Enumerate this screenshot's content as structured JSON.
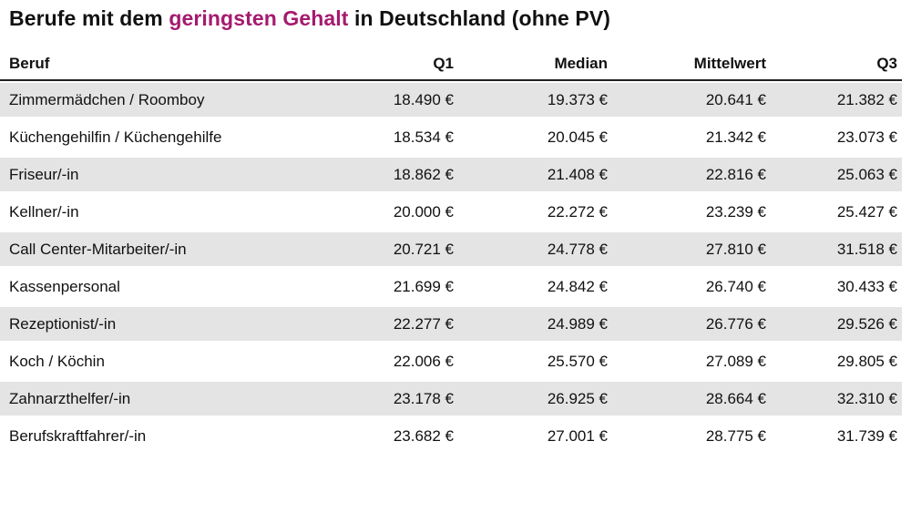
{
  "title": {
    "prefix": "Berufe mit dem ",
    "highlight": "geringsten Gehalt",
    "suffix": " in Deutschland (ohne PV)"
  },
  "colors": {
    "highlight_text": "#a51a6e",
    "zebra_row": "#e4e4e4",
    "header_rule": "#222222",
    "text": "#111111",
    "background": "#ffffff"
  },
  "chart_data": {
    "type": "table",
    "title": "Berufe mit dem geringsten Gehalt in Deutschland (ohne PV)",
    "columns": [
      "Beruf",
      "Q1",
      "Median",
      "Mittelwert",
      "Q3"
    ],
    "rows": [
      [
        "Zimmermädchen / Roomboy",
        "18.490 €",
        "19.373 €",
        "20.641 €",
        "21.382 €"
      ],
      [
        "Küchengehilfin / Küchengehilfe",
        "18.534 €",
        "20.045 €",
        "21.342 €",
        "23.073 €"
      ],
      [
        "Friseur/-in",
        "18.862 €",
        "21.408 €",
        "22.816 €",
        "25.063 €"
      ],
      [
        "Kellner/-in",
        "20.000 €",
        "22.272 €",
        "23.239 €",
        "25.427 €"
      ],
      [
        "Call Center-Mitarbeiter/-in",
        "20.721 €",
        "24.778 €",
        "27.810 €",
        "31.518 €"
      ],
      [
        "Kassenpersonal",
        "21.699 €",
        "24.842 €",
        "26.740 €",
        "30.433 €"
      ],
      [
        "Rezeptionist/-in",
        "22.277 €",
        "24.989 €",
        "26.776 €",
        "29.526 €"
      ],
      [
        "Koch / Köchin",
        "22.006 €",
        "25.570 €",
        "27.089 €",
        "29.805 €"
      ],
      [
        "Zahnarzthelfer/-in",
        "23.178 €",
        "26.925 €",
        "28.664 €",
        "32.310 €"
      ],
      [
        "Berufskraftfahrer/-in",
        "23.682 €",
        "27.001 €",
        "28.775 €",
        "31.739 €"
      ]
    ]
  }
}
